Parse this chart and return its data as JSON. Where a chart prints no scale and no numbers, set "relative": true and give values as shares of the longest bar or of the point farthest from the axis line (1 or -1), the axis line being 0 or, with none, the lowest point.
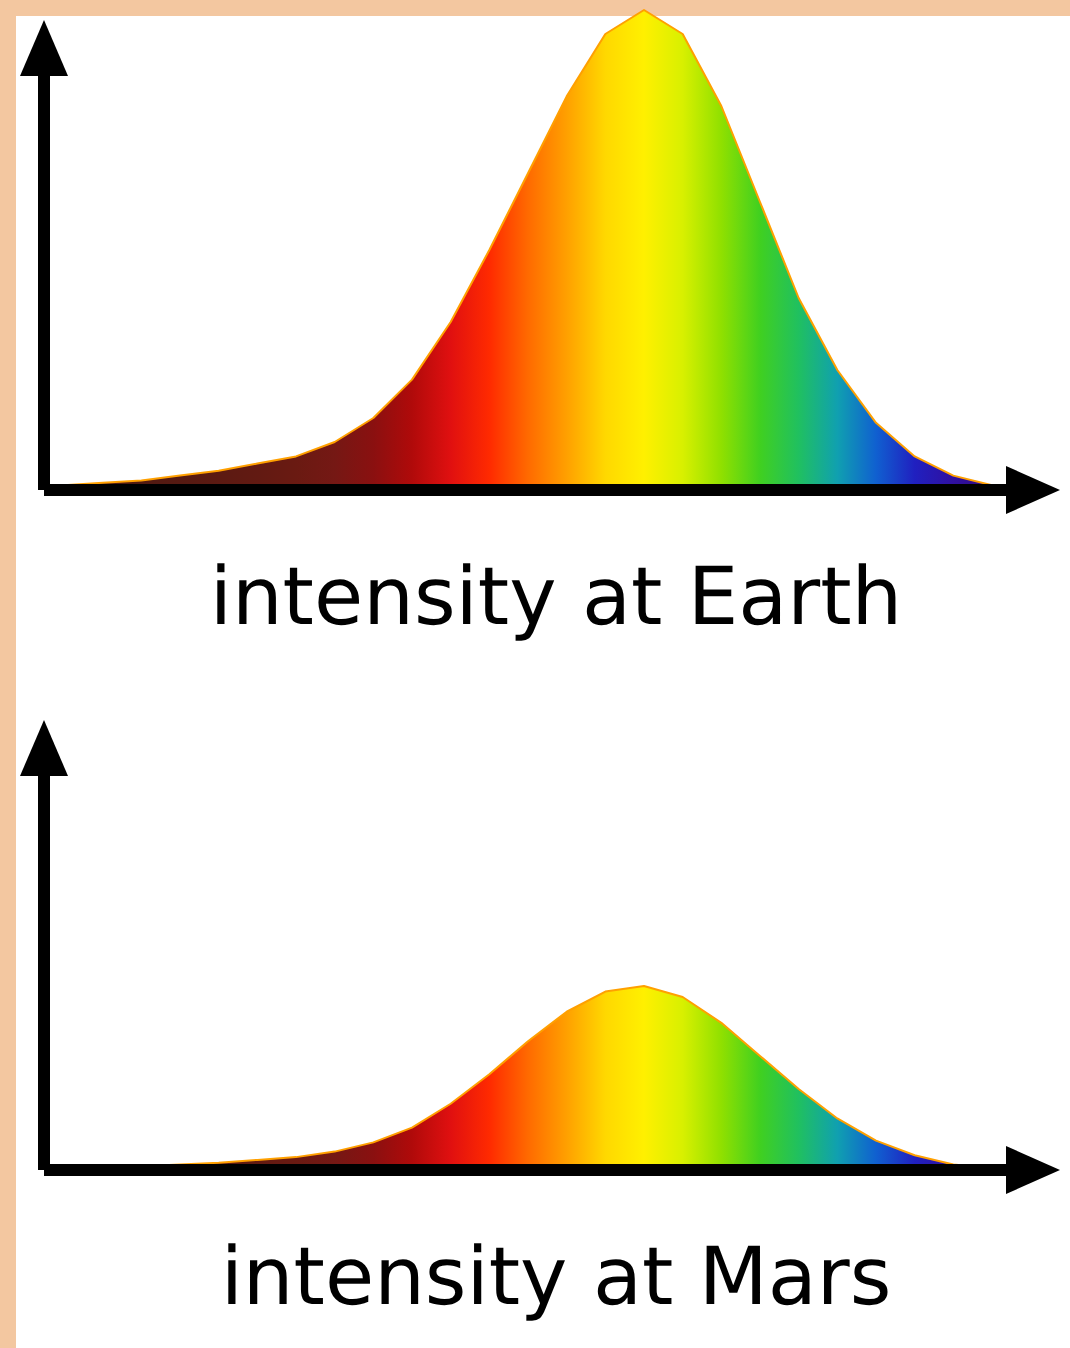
{
  "chart_data": [
    {
      "type": "area",
      "relative": true,
      "xlabel": "intensity at Earth",
      "categories": [
        null,
        null,
        null,
        null,
        null,
        null,
        null,
        null,
        null,
        null,
        null,
        null,
        null,
        null,
        null,
        null,
        null,
        null,
        null,
        null,
        null,
        null,
        null,
        null,
        null
      ],
      "series": [
        {
          "color": "#ffa000",
          "values": [
            0.01,
            0.015,
            0.02,
            0.03,
            0.04,
            0.055,
            0.07,
            0.1,
            0.15,
            0.23,
            0.35,
            0.5,
            0.66,
            0.82,
            0.95,
            1.0,
            0.95,
            0.8,
            0.6,
            0.4,
            0.25,
            0.14,
            0.07,
            0.03,
            0.01
          ],
          "colors": [
            "#4a1a12",
            "#4e1a12",
            "#521a12",
            "#561a12",
            "#5c1a12",
            "#621a12",
            "#6a1a12",
            "#751814",
            "#8a1010",
            "#b00a0a",
            "#e01010",
            "#ff2a00",
            "#ff6a00",
            "#ffa000",
            "#ffd800",
            "#fff000",
            "#d8f000",
            "#90e000",
            "#40d020",
            "#20c060",
            "#10a0b0",
            "#1060d0",
            "#2020c0",
            "#3010a0",
            "#300a80"
          ]
        }
      ]
    },
    {
      "type": "area",
      "relative": true,
      "xlabel": "intensity at Mars",
      "categories": [
        null,
        null,
        null,
        null,
        null,
        null,
        null,
        null,
        null,
        null,
        null,
        null,
        null,
        null,
        null,
        null,
        null,
        null,
        null,
        null,
        null,
        null,
        null,
        null,
        null
      ],
      "series": [
        {
          "color": "#ffa000",
          "values": [
            0.01,
            0.015,
            0.02,
            0.03,
            0.04,
            0.055,
            0.07,
            0.1,
            0.15,
            0.23,
            0.36,
            0.52,
            0.7,
            0.86,
            0.97,
            1.0,
            0.94,
            0.8,
            0.62,
            0.44,
            0.28,
            0.16,
            0.08,
            0.03,
            0.01
          ],
          "colors": [
            "#4a1a12",
            "#4e1a12",
            "#521a12",
            "#561a12",
            "#5c1a12",
            "#621a12",
            "#6a1a12",
            "#751814",
            "#8a1010",
            "#b00a0a",
            "#e01010",
            "#ff2a00",
            "#ff6a00",
            "#ffa000",
            "#ffd800",
            "#fff000",
            "#d8f000",
            "#90e000",
            "#40d020",
            "#20c060",
            "#10a0b0",
            "#1060d0",
            "#2020c0",
            "#3010a0",
            "#300a80"
          ]
        }
      ]
    }
  ]
}
